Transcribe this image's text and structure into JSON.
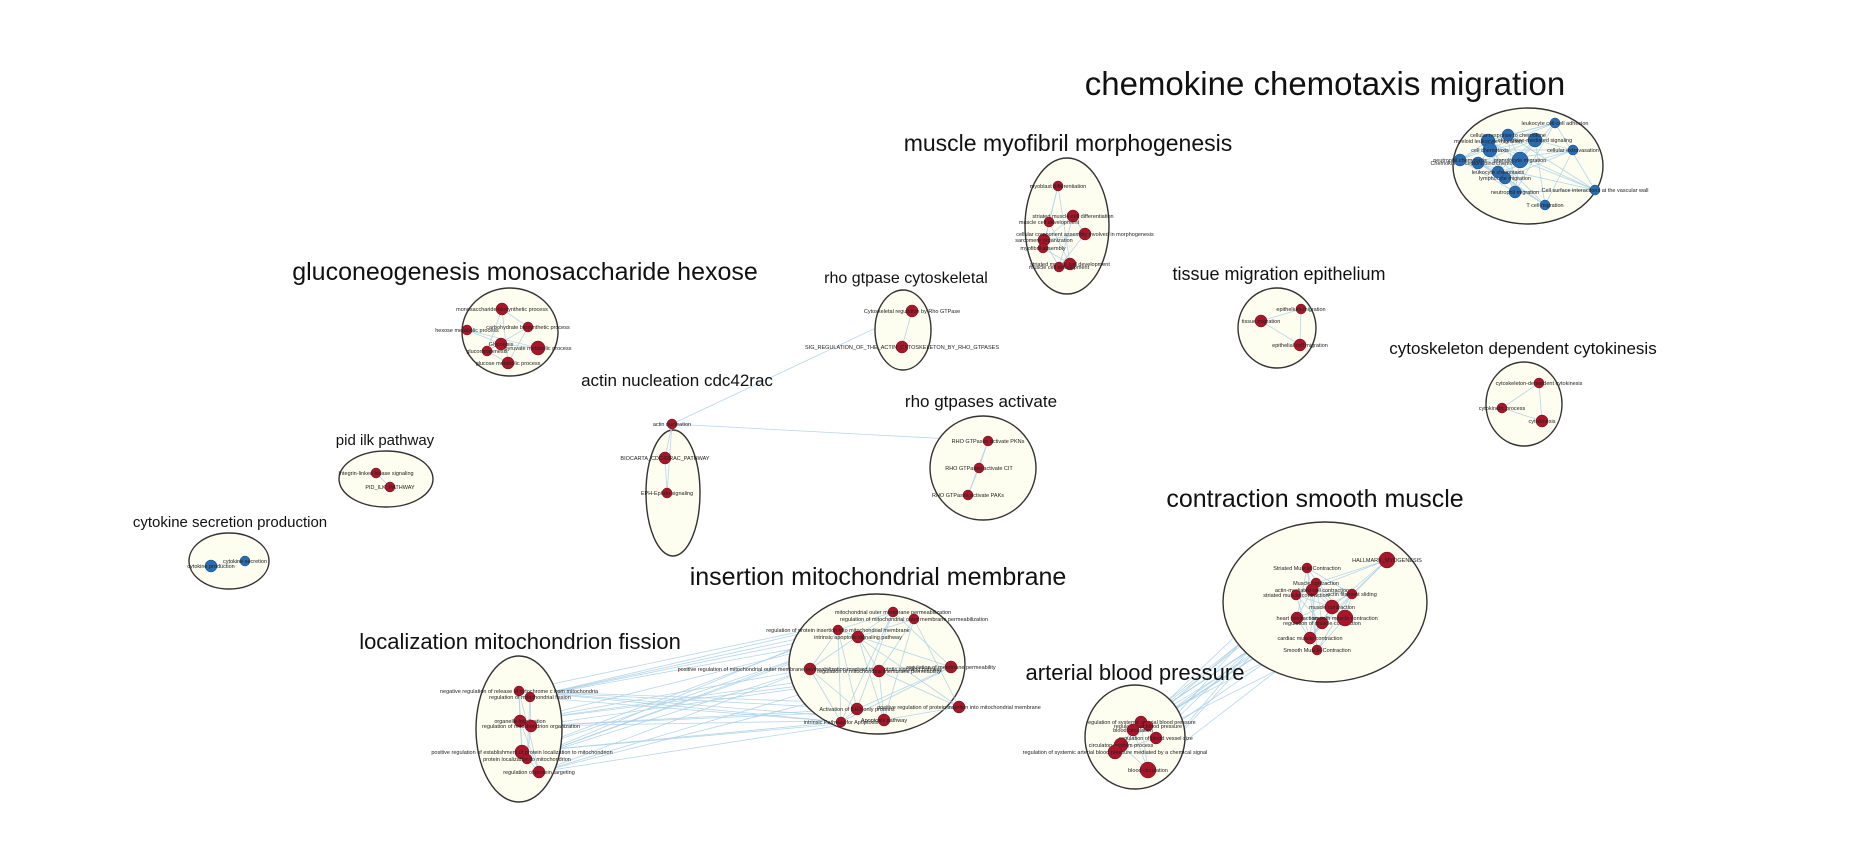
{
  "colors": {
    "red_node": "#a8162a",
    "blue_node": "#2a6cb2",
    "edge": "#a9d0e8",
    "cluster_fill": "#fdfdf0"
  },
  "clusters": [
    {
      "title": "chemokine chemotaxis migration",
      "nodes": [
        {
          "label": "leukocyte cell-cell adhesion",
          "color": "blue"
        },
        {
          "label": "cellular extravasation",
          "color": "blue"
        },
        {
          "label": "myeloid leukocyte migration",
          "color": "blue"
        },
        {
          "label": "Chemokine receptors bind chemokines",
          "color": "blue"
        },
        {
          "label": "neutrophil chemotaxis",
          "color": "blue"
        },
        {
          "label": "lymphocyte migration",
          "color": "blue"
        },
        {
          "label": "Cell surface interactions at the vascular wall",
          "color": "blue"
        },
        {
          "label": "T cell migration",
          "color": "blue"
        },
        {
          "label": "neutrophil migration",
          "color": "blue"
        },
        {
          "label": "cell chemotaxis",
          "color": "blue"
        },
        {
          "label": "granulocyte migration",
          "color": "blue"
        },
        {
          "label": "chemokine-mediated signaling",
          "color": "blue"
        },
        {
          "label": "cellular response to chemokine",
          "color": "blue"
        },
        {
          "label": "leukocyte chemotaxis",
          "color": "blue"
        }
      ]
    },
    {
      "title": "muscle myofibril morphogenesis",
      "nodes": [
        {
          "label": "myoblast differentiation",
          "color": "red"
        },
        {
          "label": "striated muscle cell differentiation",
          "color": "red"
        },
        {
          "label": "muscle cell development",
          "color": "red"
        },
        {
          "label": "sarcomere organization",
          "color": "red"
        },
        {
          "label": "myofibril assembly",
          "color": "red"
        },
        {
          "label": "cellular component assembly involved in morphogenesis",
          "color": "red"
        },
        {
          "label": "striated muscle cell development",
          "color": "red"
        },
        {
          "label": "muscle cell development",
          "color": "red"
        }
      ]
    },
    {
      "title": "gluconeogenesis monosaccharide hexose",
      "nodes": [
        {
          "label": "monosaccharide biosynthetic process",
          "color": "red"
        },
        {
          "label": "hexose metabolic process",
          "color": "red"
        },
        {
          "label": "carbohydrate biosynthetic process",
          "color": "red"
        },
        {
          "label": "Glycolysis",
          "color": "red"
        },
        {
          "label": "gluconeogenesis",
          "color": "red"
        },
        {
          "label": "pyruvate metabolic process",
          "color": "red"
        },
        {
          "label": "glucose metabolic process",
          "color": "red"
        }
      ]
    },
    {
      "title": "rho gtpase cytoskeletal",
      "nodes": [
        {
          "label": "Cytoskeletal regulation by Rho GTPase",
          "color": "red"
        },
        {
          "label": "SIG_REGULATION_OF_THE_ACTIN_CYTOSKELETON_BY_RHO_GTPASES",
          "color": "red"
        }
      ]
    },
    {
      "title": "tissue migration epithelium",
      "nodes": [
        {
          "label": "epithelium migration",
          "color": "red"
        },
        {
          "label": "tissue migration",
          "color": "red"
        },
        {
          "label": "epithelial cell migration",
          "color": "red"
        }
      ]
    },
    {
      "title": "cytoskeleton dependent cytokinesis",
      "nodes": [
        {
          "label": "cytoskeleton-dependent cytokinesis",
          "color": "red"
        },
        {
          "label": "cytokinetic process",
          "color": "red"
        },
        {
          "label": "cytokinesis",
          "color": "red"
        }
      ]
    },
    {
      "title": "actin nucleation cdc42rac",
      "nodes": [
        {
          "label": "actin nucleation",
          "color": "red"
        },
        {
          "label": "BIOCARTA_CDC42RAC_PATHWAY",
          "color": "red"
        },
        {
          "label": "EPH-Ephrin signaling",
          "color": "red"
        }
      ]
    },
    {
      "title": "rho gtpases activate",
      "nodes": [
        {
          "label": "RHO GTPases activate PKNs",
          "color": "red"
        },
        {
          "label": "RHO GTPases activate CIT",
          "color": "red"
        },
        {
          "label": "RHO GTPases activate PAKs",
          "color": "red"
        }
      ]
    },
    {
      "title": "pid ilk pathway",
      "nodes": [
        {
          "label": "Integrin-linked kinase signaling",
          "color": "red"
        },
        {
          "label": "PID_ILK_PATHWAY",
          "color": "red"
        }
      ]
    },
    {
      "title": "cytokine secretion production",
      "nodes": [
        {
          "label": "cytokine secretion",
          "color": "blue"
        },
        {
          "label": "cytokine production",
          "color": "blue"
        }
      ]
    },
    {
      "title": "contraction smooth muscle",
      "nodes": [
        {
          "label": "HALLMARK_MYOGENESIS",
          "color": "red"
        },
        {
          "label": "Striated Muscle Contraction",
          "color": "red"
        },
        {
          "label": "Muscle contraction",
          "color": "red"
        },
        {
          "label": "actin-mediated cell contraction",
          "color": "red"
        },
        {
          "label": "striated muscle contraction",
          "color": "red"
        },
        {
          "label": "actin filament sliding",
          "color": "red"
        },
        {
          "label": "muscle contraction",
          "color": "red"
        },
        {
          "label": "heart contraction",
          "color": "red"
        },
        {
          "label": "regulation of muscle contraction",
          "color": "red"
        },
        {
          "label": "smooth muscle contraction",
          "color": "red"
        },
        {
          "label": "cardiac muscle contraction",
          "color": "red"
        },
        {
          "label": "Smooth Muscle Contraction",
          "color": "red"
        }
      ]
    },
    {
      "title": "insertion mitochondrial membrane",
      "nodes": [
        {
          "label": "mitochondrial outer membrane permeabilization",
          "color": "red"
        },
        {
          "label": "regulation of mitochondrial outer membrane permeabilization",
          "color": "red"
        },
        {
          "label": "regulation of protein insertion into mitochondrial membrane",
          "color": "red"
        },
        {
          "label": "intrinsic apoptotic signaling pathway",
          "color": "red"
        },
        {
          "label": "positive regulation of mitochondrial outer membrane permeabilization involved in apoptotic signaling pathway",
          "color": "red"
        },
        {
          "label": "regulation of mitochondrial membrane permeability",
          "color": "red"
        },
        {
          "label": "regulation of membrane permeability",
          "color": "red"
        },
        {
          "label": "positive regulation of protein insertion into mitochondrial membrane",
          "color": "red"
        },
        {
          "label": "Activation of BH3-only proteins",
          "color": "red"
        },
        {
          "label": "Apoptosis pathway",
          "color": "red"
        },
        {
          "label": "intrinsic Pathway for Apoptosis",
          "color": "red"
        }
      ]
    },
    {
      "title": "localization mitochondrion fission",
      "nodes": [
        {
          "label": "negative regulation of release of cytochrome c from mitochondria",
          "color": "red"
        },
        {
          "label": "regulation of mitochondrial fission",
          "color": "red"
        },
        {
          "label": "organelle localization",
          "color": "red"
        },
        {
          "label": "regulation of mitochondrion organization",
          "color": "red"
        },
        {
          "label": "positive regulation of establishment of protein localization to mitochondrion",
          "color": "red"
        },
        {
          "label": "protein localization to mitochondrion",
          "color": "red"
        },
        {
          "label": "regulation of protein targeting",
          "color": "red"
        }
      ]
    },
    {
      "title": "arterial blood pressure",
      "nodes": [
        {
          "label": "regulation of systemic arterial blood pressure",
          "color": "red"
        },
        {
          "label": "regulation of blood pressure",
          "color": "red"
        },
        {
          "label": "blood circulation",
          "color": "red"
        },
        {
          "label": "regulation of blood vessel size",
          "color": "red"
        },
        {
          "label": "circulatory system process",
          "color": "red"
        },
        {
          "label": "regulation of systemic arterial blood pressure mediated by a chemical signal",
          "color": "red"
        },
        {
          "label": "blood circulation",
          "color": "red"
        }
      ]
    }
  ]
}
